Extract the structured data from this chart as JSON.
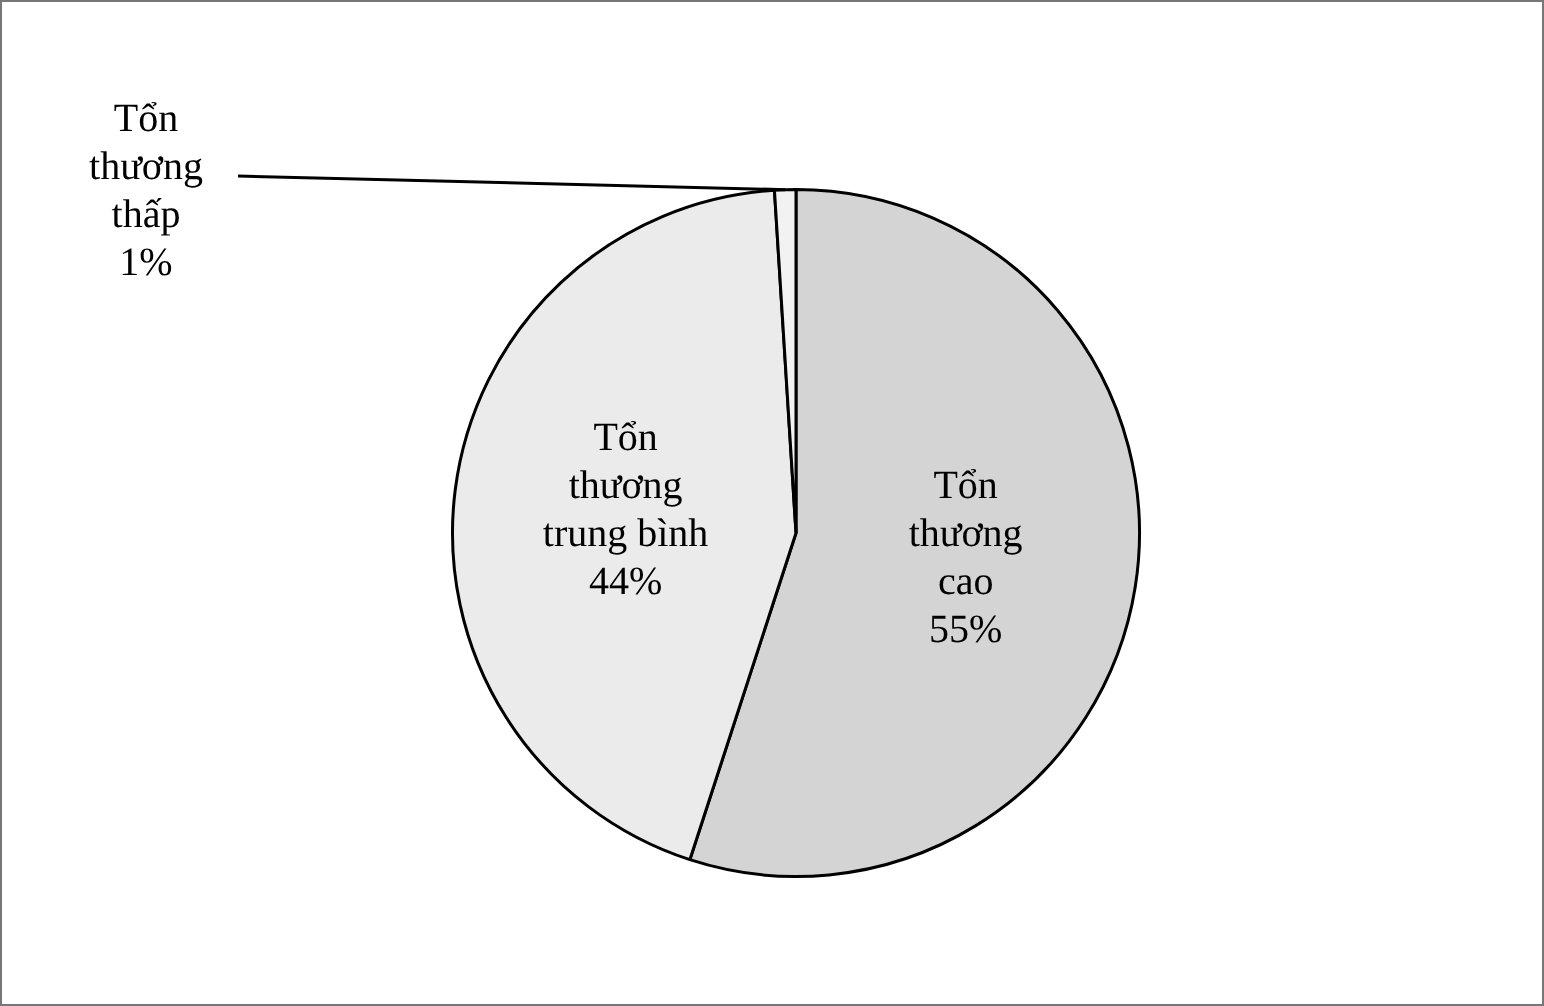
{
  "chart_data": {
    "type": "pie",
    "categories": [
      "Tổn thương cao",
      "Tổn thương trung bình",
      "Tổn thương thấp"
    ],
    "values": [
      55,
      44,
      1
    ],
    "colors": [
      "#d4d4d4",
      "#ebebeb",
      "#f2f2f2"
    ],
    "value_labels": [
      "55%",
      "44%",
      "1%"
    ],
    "legend": false
  }
}
